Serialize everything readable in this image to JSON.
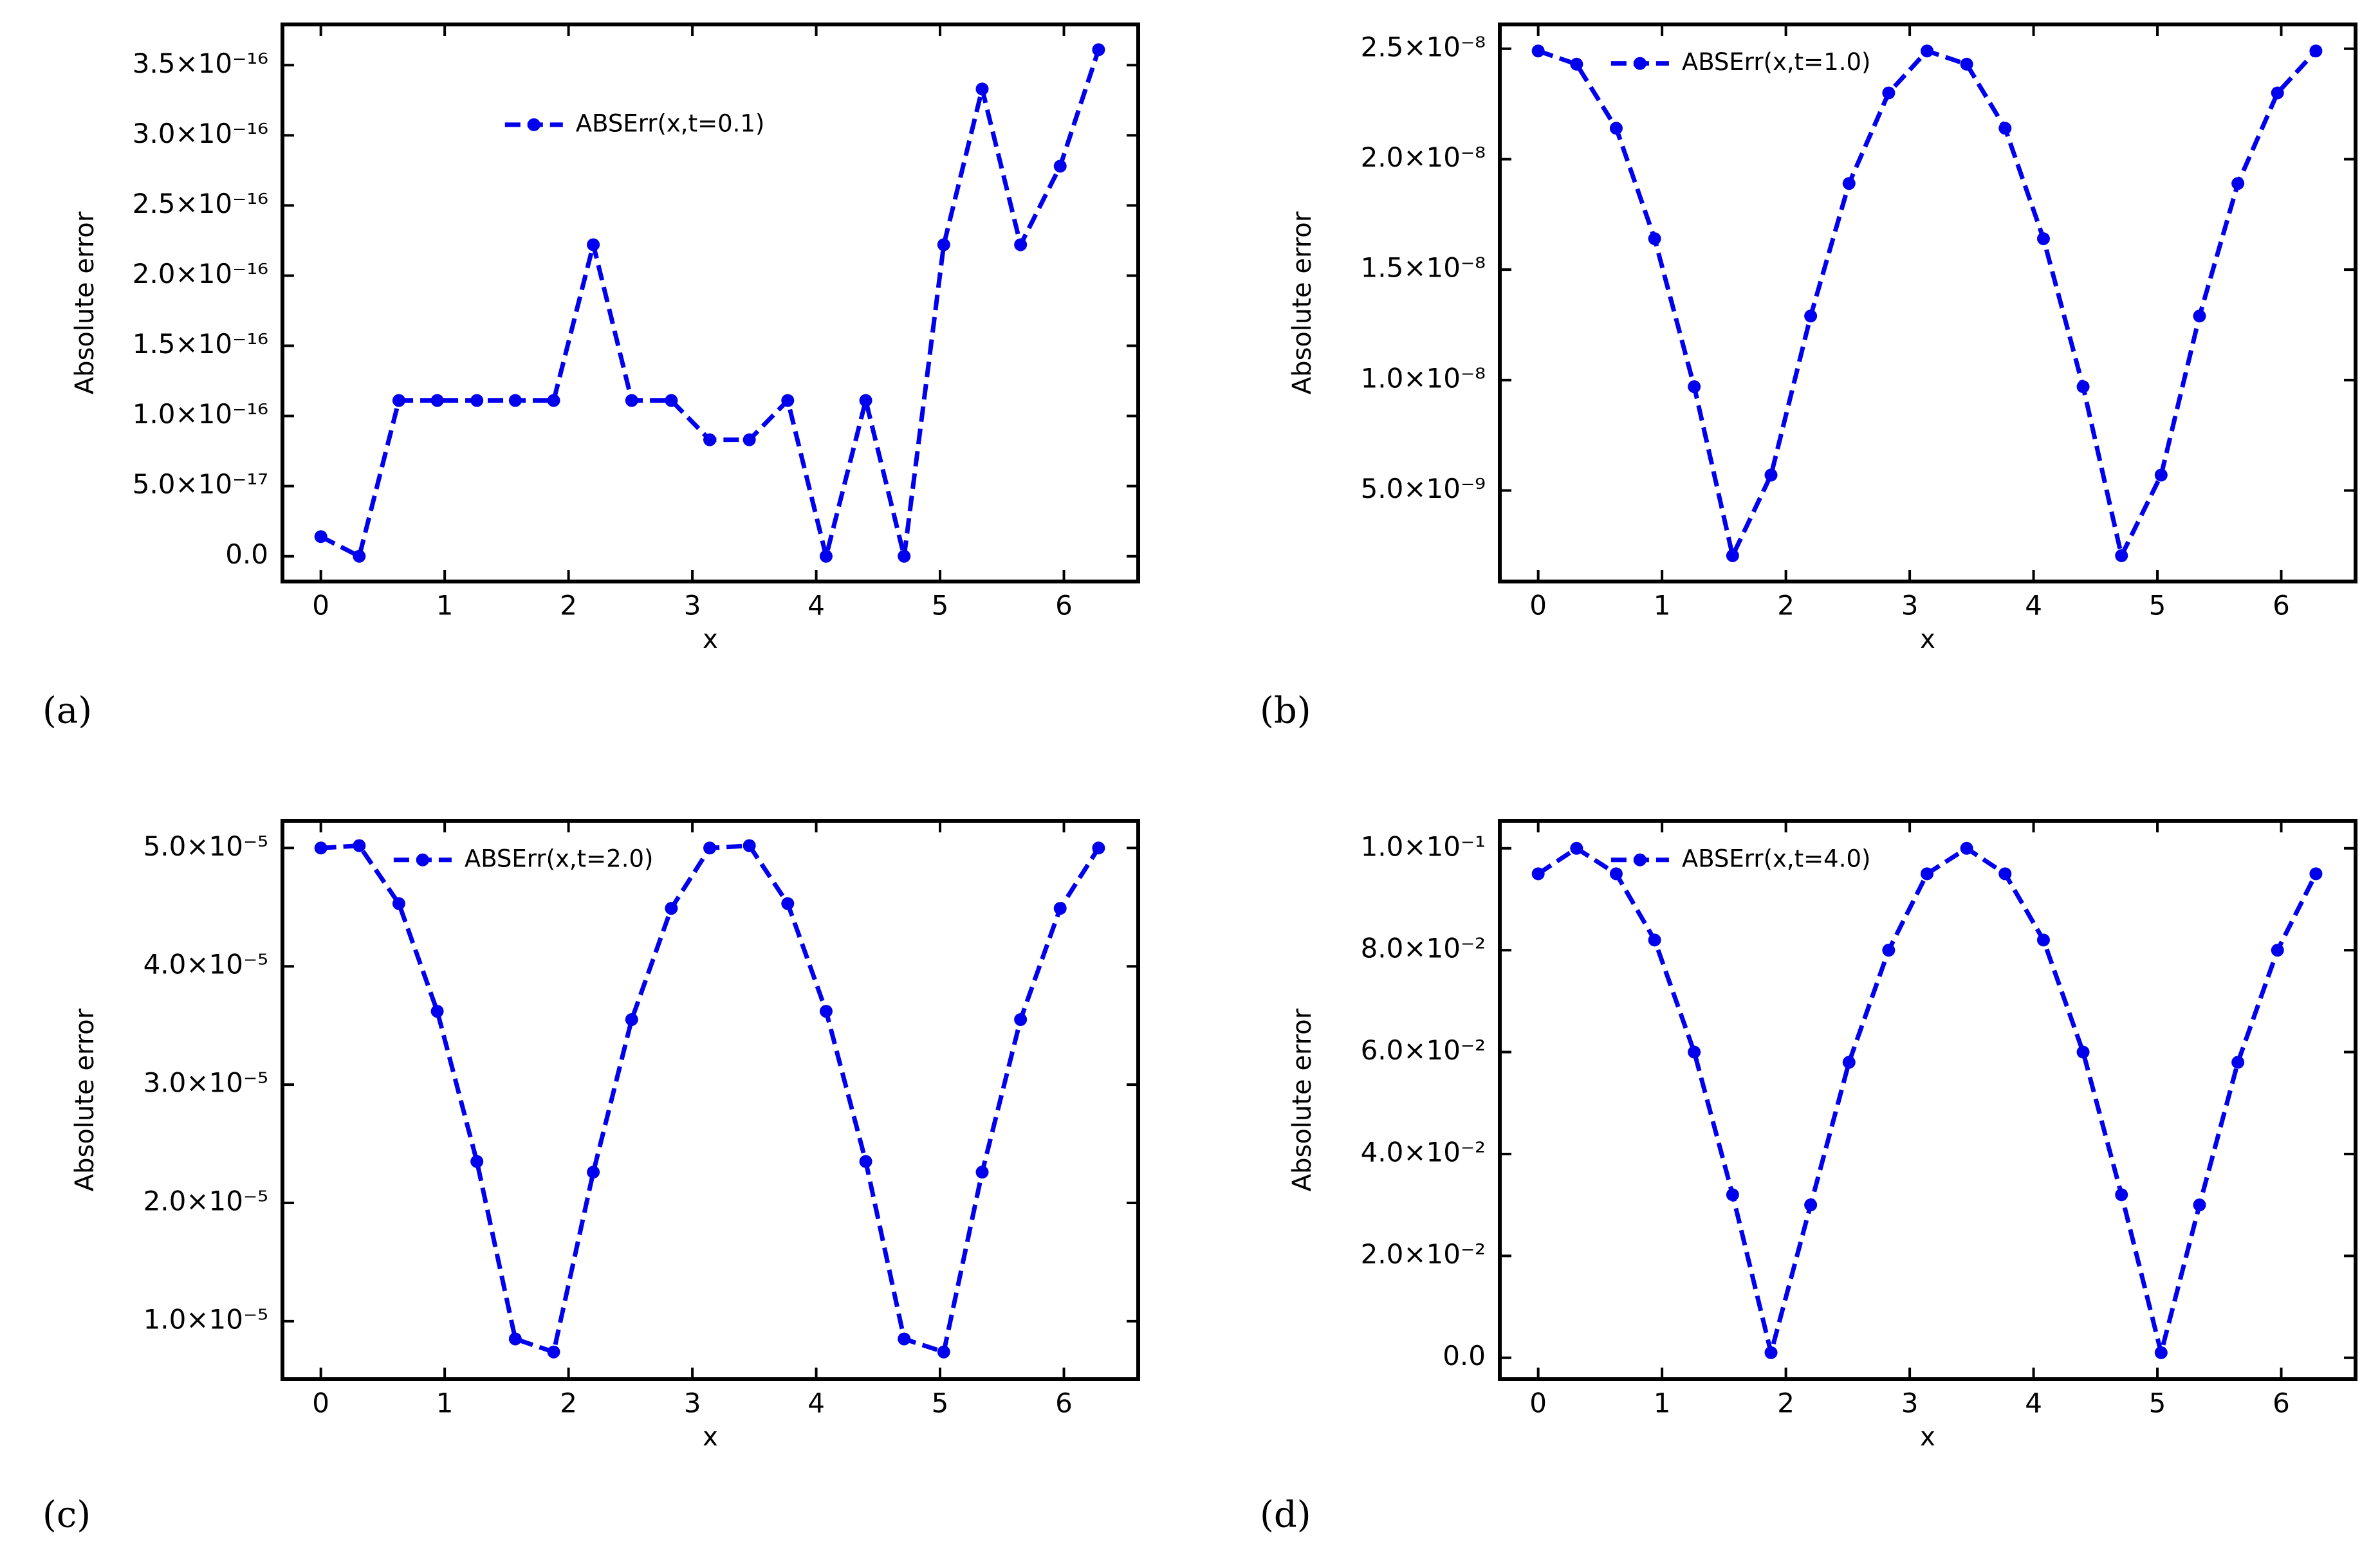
{
  "chart_data": [
    {
      "type": "line",
      "panel_label": "(a)",
      "xlabel": "x",
      "ylabel": "Absolute error",
      "legend": "upper center",
      "x": [
        0,
        0.31,
        0.63,
        0.94,
        1.26,
        1.57,
        1.88,
        2.2,
        2.51,
        2.83,
        3.14,
        3.46,
        3.77,
        4.08,
        4.4,
        4.71,
        5.03,
        5.34,
        5.65,
        5.97,
        6.28
      ],
      "series": [
        {
          "name": "ABSErr(x,t=0.1)",
          "color": "#0000ee",
          "values": [
            1.4e-17,
            0,
            1.11e-16,
            1.11e-16,
            1.11e-16,
            1.11e-16,
            1.11e-16,
            2.22e-16,
            1.11e-16,
            1.11e-16,
            8.3e-17,
            8.3e-17,
            1.11e-16,
            0,
            1.11e-16,
            0,
            2.22e-16,
            3.33e-16,
            2.22e-16,
            2.78e-16,
            3.61e-16
          ]
        }
      ],
      "xlim": [
        -0.31,
        6.6
      ],
      "xticks": [
        0,
        1,
        2,
        3,
        4,
        5,
        6
      ],
      "ylim": [
        -1.8e-17,
        3.79e-16
      ],
      "yticks": [
        {
          "value": 0,
          "label": "0.0"
        },
        {
          "value": 5e-17,
          "label": "5.0×10⁻¹⁷"
        },
        {
          "value": 1e-16,
          "label": "1.0×10⁻¹⁶"
        },
        {
          "value": 1.5e-16,
          "label": "1.5×10⁻¹⁶"
        },
        {
          "value": 2e-16,
          "label": "2.0×10⁻¹⁶"
        },
        {
          "value": 2.5e-16,
          "label": "2.5×10⁻¹⁶"
        },
        {
          "value": 3e-16,
          "label": "3.0×10⁻¹⁶"
        },
        {
          "value": 3.5e-16,
          "label": "3.5×10⁻¹⁶"
        }
      ]
    },
    {
      "type": "line",
      "panel_label": "(b)",
      "xlabel": "x",
      "ylabel": "Absolute error",
      "legend": "upper left",
      "x": [
        0,
        0.31,
        0.63,
        0.94,
        1.26,
        1.57,
        1.88,
        2.2,
        2.51,
        2.83,
        3.14,
        3.46,
        3.77,
        4.08,
        4.4,
        4.71,
        5.03,
        5.34,
        5.65,
        5.97,
        6.28
      ],
      "series": [
        {
          "name": "ABSErr(x,t=1.0)",
          "color": "#0000ee",
          "values": [
            2.49e-08,
            2.43e-08,
            2.14e-08,
            1.64e-08,
            9.7e-09,
            2.05e-09,
            5.7e-09,
            1.29e-08,
            1.89e-08,
            2.3e-08,
            2.49e-08,
            2.43e-08,
            2.14e-08,
            1.64e-08,
            9.7e-09,
            2.05e-09,
            5.7e-09,
            1.29e-08,
            1.89e-08,
            2.3e-08,
            2.49e-08
          ]
        }
      ],
      "xlim": [
        -0.31,
        6.6
      ],
      "xticks": [
        0,
        1,
        2,
        3,
        4,
        5,
        6
      ],
      "ylim": [
        8.8e-10,
        2.61e-08
      ],
      "yticks": [
        {
          "value": 5e-09,
          "label": "5.0×10⁻⁹"
        },
        {
          "value": 1e-08,
          "label": "1.0×10⁻⁸"
        },
        {
          "value": 1.5e-08,
          "label": "1.5×10⁻⁸"
        },
        {
          "value": 2e-08,
          "label": "2.0×10⁻⁸"
        },
        {
          "value": 2.5e-08,
          "label": "2.5×10⁻⁸"
        }
      ]
    },
    {
      "type": "line",
      "panel_label": "(c)",
      "xlabel": "x",
      "ylabel": "Absolute error",
      "legend": "upper left",
      "x": [
        0,
        0.31,
        0.63,
        0.94,
        1.26,
        1.57,
        1.88,
        2.2,
        2.51,
        2.83,
        3.14,
        3.46,
        3.77,
        4.08,
        4.4,
        4.71,
        5.03,
        5.34,
        5.65,
        5.97,
        6.28
      ],
      "series": [
        {
          "name": "ABSErr(x,t=2.0)",
          "color": "#0000ee",
          "values": [
            5e-05,
            5.02e-05,
            4.53e-05,
            3.62e-05,
            2.35e-05,
            8.5e-06,
            7.4e-06,
            2.26e-05,
            3.55e-05,
            4.49e-05,
            5e-05,
            5.02e-05,
            4.53e-05,
            3.62e-05,
            2.35e-05,
            8.5e-06,
            7.4e-06,
            2.26e-05,
            3.55e-05,
            4.49e-05,
            5e-05
          ]
        }
      ],
      "xlim": [
        -0.31,
        6.6
      ],
      "xticks": [
        0,
        1,
        2,
        3,
        4,
        5,
        6
      ],
      "ylim": [
        5.1e-06,
        5.23e-05
      ],
      "yticks": [
        {
          "value": 1e-05,
          "label": "1.0×10⁻⁵"
        },
        {
          "value": 2e-05,
          "label": "2.0×10⁻⁵"
        },
        {
          "value": 3e-05,
          "label": "3.0×10⁻⁵"
        },
        {
          "value": 4e-05,
          "label": "4.0×10⁻⁵"
        },
        {
          "value": 5e-05,
          "label": "5.0×10⁻⁵"
        }
      ]
    },
    {
      "type": "line",
      "panel_label": "(d)",
      "xlabel": "x",
      "ylabel": "Absolute error",
      "legend": "upper left",
      "x": [
        0,
        0.31,
        0.63,
        0.94,
        1.26,
        1.57,
        1.88,
        2.2,
        2.51,
        2.83,
        3.14,
        3.46,
        3.77,
        4.08,
        4.4,
        4.71,
        5.03,
        5.34,
        5.65,
        5.97,
        6.28
      ],
      "series": [
        {
          "name": "ABSErr(x,t=4.0)",
          "color": "#0000ee",
          "values": [
            0.095,
            0.1,
            0.095,
            0.082,
            0.06,
            0.032,
            0.001,
            0.03,
            0.058,
            0.08,
            0.095,
            0.1,
            0.095,
            0.082,
            0.06,
            0.032,
            0.001,
            0.03,
            0.058,
            0.08,
            0.095
          ]
        }
      ],
      "xlim": [
        -0.31,
        6.6
      ],
      "xticks": [
        0,
        1,
        2,
        3,
        4,
        5,
        6
      ],
      "ylim": [
        -0.0042,
        0.1054
      ],
      "yticks": [
        {
          "value": 0,
          "label": "0.0"
        },
        {
          "value": 0.02,
          "label": "2.0×10⁻²"
        },
        {
          "value": 0.04,
          "label": "4.0×10⁻²"
        },
        {
          "value": 0.06,
          "label": "6.0×10⁻²"
        },
        {
          "value": 0.08,
          "label": "8.0×10⁻²"
        },
        {
          "value": 0.1,
          "label": "1.0×10⁻¹"
        }
      ]
    }
  ]
}
